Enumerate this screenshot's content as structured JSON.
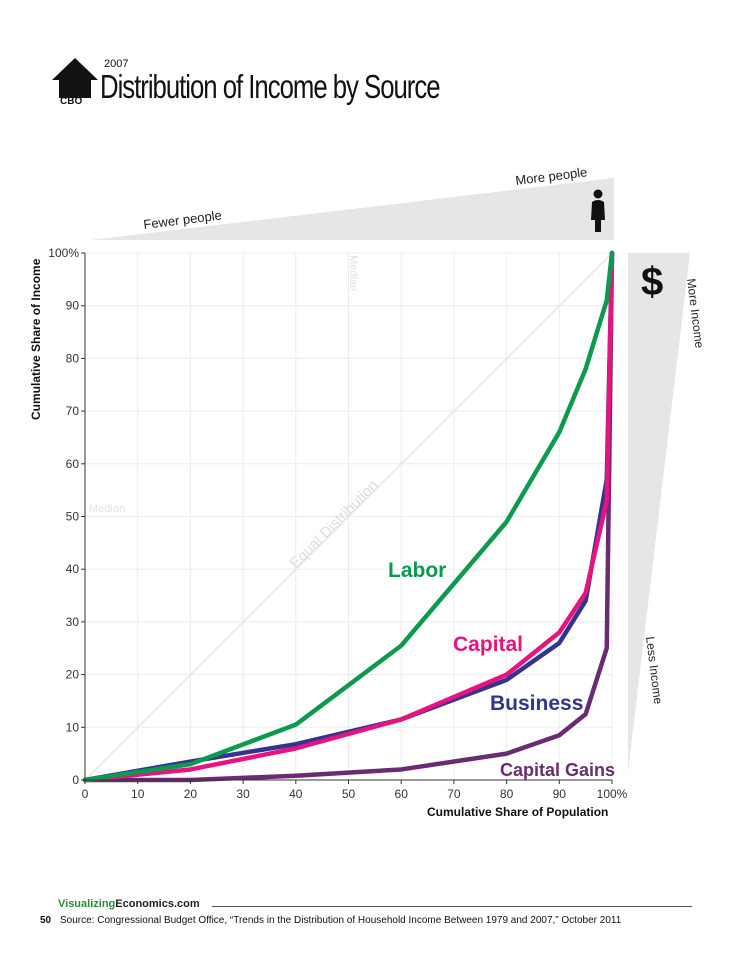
{
  "header": {
    "logo_text": "CBO",
    "year": "2007",
    "title": "Distribution of Income by Source"
  },
  "annotations": {
    "fewer_people": "Fewer people",
    "more_people": "More people",
    "more_income": "More Income",
    "less_income": "Less Income",
    "median": "Median",
    "dollar": "$",
    "equal_distribution": "Equal Distribution"
  },
  "chart_data": {
    "type": "line",
    "xlabel": "Cumulative Share of Population",
    "ylabel": "Cumulative Share of Income",
    "xlim": [
      0,
      100
    ],
    "ylim": [
      0,
      100
    ],
    "x_ticks": [
      "0",
      "10",
      "20",
      "30",
      "40",
      "50",
      "60",
      "70",
      "80",
      "90",
      "100%"
    ],
    "y_ticks": [
      "0",
      "10",
      "20",
      "30",
      "40",
      "50",
      "60",
      "70",
      "80",
      "90",
      "100%"
    ],
    "grid": true,
    "series": [
      {
        "name": "Labor",
        "color": "#0e9a4e",
        "x": [
          0,
          20,
          40,
          60,
          80,
          90,
          95,
          99,
          100
        ],
        "y": [
          0,
          3,
          10.5,
          25.5,
          49,
          66,
          78,
          91,
          100
        ]
      },
      {
        "name": "Capital",
        "color": "#e8137f",
        "x": [
          0,
          20,
          40,
          60,
          80,
          90,
          95,
          99,
          100
        ],
        "y": [
          0,
          2,
          6,
          11.5,
          20,
          28,
          35.5,
          53,
          100
        ]
      },
      {
        "name": "Business",
        "color": "#33348e",
        "x": [
          0,
          20,
          40,
          60,
          80,
          90,
          95,
          99,
          100
        ],
        "y": [
          0,
          3.5,
          6.8,
          11.5,
          19,
          26,
          34,
          57,
          100
        ]
      },
      {
        "name": "Capital Gains",
        "color": "#6b2b72",
        "x": [
          0,
          20,
          40,
          60,
          80,
          90,
          95,
          99,
          100
        ],
        "y": [
          0,
          0,
          0.8,
          2,
          5,
          8.5,
          12.5,
          25,
          100
        ]
      }
    ],
    "reference_line": {
      "name": "Equal Distribution",
      "x": [
        0,
        100
      ],
      "y": [
        0,
        100
      ],
      "color": "#e6e6e6"
    }
  },
  "footer": {
    "brand_prefix": "Visualizing",
    "brand_suffix": "Economics.com",
    "page_number": "50",
    "source": "Source: Congressional Budget Office, “Trends in the Distribution of Household Income Between 1979 and 2007,” October 2011"
  }
}
